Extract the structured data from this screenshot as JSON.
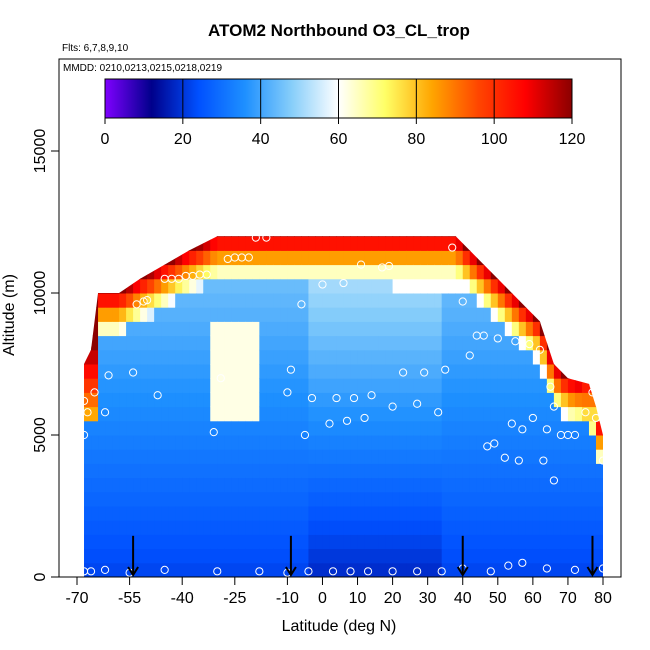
{
  "chart_data": {
    "type": "heatmap",
    "title": "ATOM2 Northbound O3_CL_trop",
    "subtitle_lines": [
      "Flts: 6,7,8,9,10",
      "MMDD: 0210,0213,0215,0218,0219"
    ],
    "xlabel": "Latitude (deg N)",
    "ylabel": "Altitude (m)",
    "xlim": [
      -70,
      83
    ],
    "ylim": [
      0,
      17500
    ],
    "x_ticks": [
      -70,
      -55,
      -40,
      -25,
      -10,
      0,
      10,
      20,
      30,
      40,
      50,
      60,
      70,
      80
    ],
    "y_ticks": [
      0,
      5000,
      10000,
      15000
    ],
    "colorbar": {
      "min": 0,
      "max": 120,
      "ticks": [
        0,
        20,
        40,
        60,
        80,
        100,
        120
      ],
      "colors": [
        "#7f00ff",
        "#00008b",
        "#0050ff",
        "#1e90ff",
        "#87cefa",
        "#ffffff",
        "#ffff66",
        "#ffa500",
        "#ff4500",
        "#ff0000",
        "#8b0000"
      ]
    },
    "altitude_ceiling": [
      {
        "lat": -68,
        "alt": 7500
      },
      {
        "lat": -66,
        "alt": 8000
      },
      {
        "lat": -64,
        "alt": 10000
      },
      {
        "lat": -58,
        "alt": 10000
      },
      {
        "lat": -52,
        "alt": 10500
      },
      {
        "lat": -45,
        "alt": 11000
      },
      {
        "lat": -38,
        "alt": 11500
      },
      {
        "lat": -30,
        "alt": 12000
      },
      {
        "lat": -10,
        "alt": 12000
      },
      {
        "lat": 10,
        "alt": 12000
      },
      {
        "lat": 30,
        "alt": 12000
      },
      {
        "lat": 38,
        "alt": 12000
      },
      {
        "lat": 42,
        "alt": 11500
      },
      {
        "lat": 46,
        "alt": 11000
      },
      {
        "lat": 50,
        "alt": 10500
      },
      {
        "lat": 54,
        "alt": 10000
      },
      {
        "lat": 58,
        "alt": 9500
      },
      {
        "lat": 62,
        "alt": 9000
      },
      {
        "lat": 66,
        "alt": 7500
      },
      {
        "lat": 70,
        "alt": 7000
      },
      {
        "lat": 76,
        "alt": 6800
      },
      {
        "lat": 78,
        "alt": 6000
      },
      {
        "lat": 80,
        "alt": 5000
      }
    ],
    "observations": [
      {
        "lat": -68,
        "alt": 5000
      },
      {
        "lat": -68,
        "alt": 6200
      },
      {
        "lat": -67,
        "alt": 5800
      },
      {
        "lat": -65,
        "alt": 6500
      },
      {
        "lat": -62,
        "alt": 5800
      },
      {
        "lat": -61,
        "alt": 7100
      },
      {
        "lat": -54,
        "alt": 7200
      },
      {
        "lat": -53,
        "alt": 9600
      },
      {
        "lat": -51,
        "alt": 9700
      },
      {
        "lat": -50,
        "alt": 9750
      },
      {
        "lat": -47,
        "alt": 6400
      },
      {
        "lat": -45,
        "alt": 10500
      },
      {
        "lat": -43,
        "alt": 10500
      },
      {
        "lat": -41,
        "alt": 10500
      },
      {
        "lat": -39,
        "alt": 10600
      },
      {
        "lat": -37,
        "alt": 10600
      },
      {
        "lat": -35,
        "alt": 10650
      },
      {
        "lat": -33,
        "alt": 10650
      },
      {
        "lat": -31,
        "alt": 5100
      },
      {
        "lat": -29,
        "alt": 7000
      },
      {
        "lat": -27,
        "alt": 11200
      },
      {
        "lat": -25,
        "alt": 11250
      },
      {
        "lat": -23,
        "alt": 11250
      },
      {
        "lat": -21,
        "alt": 11250
      },
      {
        "lat": -19,
        "alt": 11950
      },
      {
        "lat": -16,
        "alt": 11950
      },
      {
        "lat": -10,
        "alt": 6500
      },
      {
        "lat": -9,
        "alt": 7300
      },
      {
        "lat": -6,
        "alt": 9600
      },
      {
        "lat": -5,
        "alt": 5000
      },
      {
        "lat": -3,
        "alt": 6300
      },
      {
        "lat": 0,
        "alt": 10300
      },
      {
        "lat": 2,
        "alt": 5400
      },
      {
        "lat": 4,
        "alt": 6300
      },
      {
        "lat": 6,
        "alt": 10350
      },
      {
        "lat": 7,
        "alt": 5500
      },
      {
        "lat": 9,
        "alt": 6300
      },
      {
        "lat": 11,
        "alt": 11000
      },
      {
        "lat": 12,
        "alt": 5600
      },
      {
        "lat": 14,
        "alt": 6400
      },
      {
        "lat": 17,
        "alt": 10900
      },
      {
        "lat": 19,
        "alt": 10950
      },
      {
        "lat": 20,
        "alt": 6000
      },
      {
        "lat": 23,
        "alt": 7200
      },
      {
        "lat": 27,
        "alt": 6100
      },
      {
        "lat": 29,
        "alt": 7200
      },
      {
        "lat": 33,
        "alt": 5800
      },
      {
        "lat": 35,
        "alt": 7300
      },
      {
        "lat": 37,
        "alt": 11600
      },
      {
        "lat": 40,
        "alt": 9700
      },
      {
        "lat": 42,
        "alt": 7800
      },
      {
        "lat": 44,
        "alt": 8500
      },
      {
        "lat": 46,
        "alt": 8500
      },
      {
        "lat": 47,
        "alt": 4600
      },
      {
        "lat": 49,
        "alt": 4700
      },
      {
        "lat": 50,
        "alt": 8400
      },
      {
        "lat": 52,
        "alt": 4200
      },
      {
        "lat": 54,
        "alt": 5400
      },
      {
        "lat": 55,
        "alt": 8300
      },
      {
        "lat": 56,
        "alt": 4100
      },
      {
        "lat": 57,
        "alt": 5200
      },
      {
        "lat": 59,
        "alt": 8200
      },
      {
        "lat": 60,
        "alt": 5600
      },
      {
        "lat": 62,
        "alt": 8000
      },
      {
        "lat": 63,
        "alt": 4100
      },
      {
        "lat": 64,
        "alt": 5200
      },
      {
        "lat": 65,
        "alt": 6700
      },
      {
        "lat": 66,
        "alt": 3400
      },
      {
        "lat": 66,
        "alt": 6000
      },
      {
        "lat": 68,
        "alt": 5000
      },
      {
        "lat": 70,
        "alt": 5000
      },
      {
        "lat": 72,
        "alt": 5000
      },
      {
        "lat": 75,
        "alt": 5800
      },
      {
        "lat": 77,
        "alt": 6500
      },
      {
        "lat": 78,
        "alt": 5600
      },
      {
        "lat": 80,
        "alt": 4100
      },
      {
        "lat": -68,
        "alt": 200
      },
      {
        "lat": -66,
        "alt": 200
      },
      {
        "lat": -62,
        "alt": 250
      },
      {
        "lat": -55,
        "alt": 150
      },
      {
        "lat": -45,
        "alt": 250
      },
      {
        "lat": -30,
        "alt": 200
      },
      {
        "lat": -18,
        "alt": 200
      },
      {
        "lat": -10,
        "alt": 150
      },
      {
        "lat": -4,
        "alt": 200
      },
      {
        "lat": 3,
        "alt": 200
      },
      {
        "lat": 8,
        "alt": 200
      },
      {
        "lat": 13,
        "alt": 200
      },
      {
        "lat": 20,
        "alt": 200
      },
      {
        "lat": 27,
        "alt": 200
      },
      {
        "lat": 34,
        "alt": 200
      },
      {
        "lat": 40,
        "alt": 300
      },
      {
        "lat": 48,
        "alt": 200
      },
      {
        "lat": 53,
        "alt": 400
      },
      {
        "lat": 57,
        "alt": 500
      },
      {
        "lat": 64,
        "alt": 300
      },
      {
        "lat": 72,
        "alt": 250
      },
      {
        "lat": 80,
        "alt": 300
      }
    ],
    "arrows": [
      {
        "lat": -54,
        "alt": 700
      },
      {
        "lat": -9,
        "alt": 700
      },
      {
        "lat": 40,
        "alt": 700
      },
      {
        "lat": 77,
        "alt": 700
      }
    ]
  }
}
